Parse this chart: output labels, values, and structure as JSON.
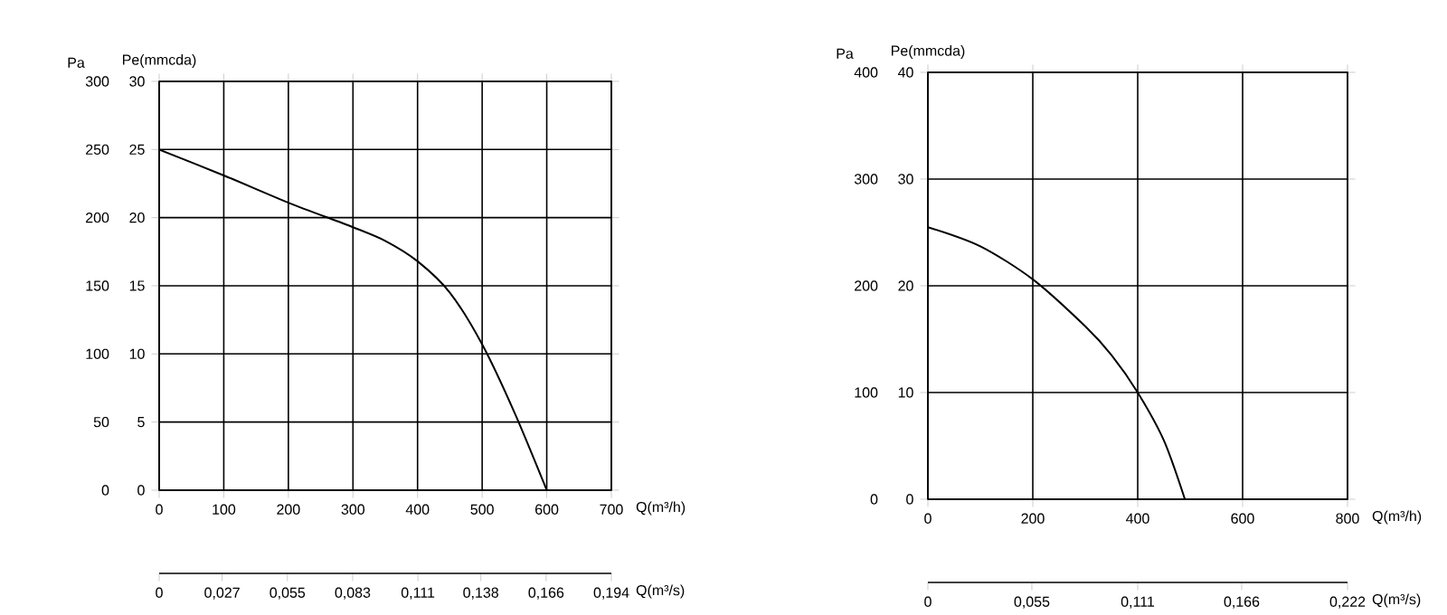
{
  "chart_data": [
    {
      "type": "line",
      "xlabel": "Q(m³/h)",
      "x2label": "Q(m³/s)",
      "ylabel": "Pa",
      "y2label": "Pe(mmcda)",
      "xlim": [
        0,
        700
      ],
      "xticks": [
        0,
        100,
        200,
        300,
        400,
        500,
        600,
        700
      ],
      "x2lim": [
        0,
        0.194
      ],
      "x2ticks": [
        0,
        {
          "value": 0.027,
          "label": "0,027"
        },
        {
          "value": 0.055,
          "label": "0,055"
        },
        {
          "value": 0.083,
          "label": "0,083"
        },
        {
          "value": 0.111,
          "label": "0,111"
        },
        {
          "value": 0.138,
          "label": "0,138"
        },
        {
          "value": 0.166,
          "label": "0,166"
        },
        {
          "value": 0.194,
          "label": "0,194"
        }
      ],
      "ylim": [
        0,
        300
      ],
      "yticks": [
        0,
        50,
        100,
        150,
        200,
        250,
        300
      ],
      "y2lim": [
        0,
        30
      ],
      "y2ticks": [
        0,
        5,
        10,
        15,
        20,
        25,
        30
      ],
      "grid": true,
      "marker": "none",
      "line_style": "solid",
      "series": [
        {
          "color": "#000000",
          "x": [
            0,
            100,
            200,
            300,
            350,
            400,
            450,
            500,
            550,
            600
          ],
          "values": [
            250,
            231,
            211,
            193,
            183,
            168,
            145,
            107,
            57,
            0
          ]
        }
      ]
    },
    {
      "type": "line",
      "xlabel": "Q(m³/h)",
      "x2label": "Q(m³/s)",
      "ylabel": "Pa",
      "y2label": "Pe(mmcda)",
      "xlim": [
        0,
        800
      ],
      "xticks": [
        0,
        200,
        400,
        600,
        800
      ],
      "x2lim": [
        0,
        0.222
      ],
      "x2ticks": [
        0,
        {
          "value": 0.055,
          "label": "0,055"
        },
        {
          "value": 0.111,
          "label": "0,111"
        },
        {
          "value": 0.166,
          "label": "0,166"
        },
        {
          "value": 0.222,
          "label": "0,222"
        }
      ],
      "ylim": [
        0,
        400
      ],
      "yticks": [
        0,
        100,
        200,
        300,
        400
      ],
      "y2lim": [
        0,
        40
      ],
      "y2ticks": [
        0,
        10,
        20,
        30,
        40
      ],
      "grid": true,
      "marker": "none",
      "line_style": "solid",
      "series": [
        {
          "color": "#000000",
          "x": [
            0,
            100,
            200,
            300,
            350,
            400,
            450,
            490
          ],
          "values": [
            255,
            237,
            206,
            162,
            135,
            100,
            55,
            0
          ]
        }
      ]
    }
  ]
}
